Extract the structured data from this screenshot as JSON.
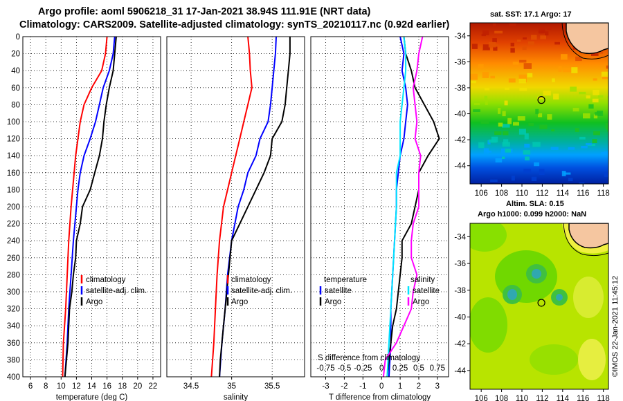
{
  "title_line1": "Argo profile: aoml 5906218_31 17-Jan-2021 38.94S 111.91E (NRT data)",
  "title_line2": "Climatology: CARS2009. Satellite-adjusted climatology: synTS_20210117.nc (0.92d earlier)",
  "colors": {
    "red": "#ff0000",
    "blue": "#0000ff",
    "black": "#000000",
    "cyan": "#00e5ff",
    "magenta": "#ff00ff",
    "land": "#f5c6a0"
  },
  "depth_axis": {
    "min": 0,
    "max": 400,
    "ticks": [
      0,
      20,
      40,
      60,
      80,
      100,
      120,
      140,
      160,
      180,
      200,
      220,
      240,
      260,
      280,
      300,
      320,
      340,
      360,
      380,
      400
    ]
  },
  "chart_data": [
    {
      "type": "line",
      "name": "temperature",
      "xlabel": "temperature (deg C)",
      "xlim": [
        5,
        23
      ],
      "xticks": [
        6,
        8,
        10,
        12,
        14,
        16,
        18,
        20,
        22
      ],
      "ylim": [
        400,
        0
      ],
      "series": [
        {
          "name": "climatology",
          "color": "red",
          "depth": [
            0,
            20,
            40,
            60,
            80,
            100,
            120,
            140,
            160,
            180,
            200,
            240,
            280,
            320,
            360,
            400
          ],
          "value": [
            16.0,
            15.8,
            15.3,
            14.0,
            13.0,
            12.5,
            12.2,
            11.9,
            11.7,
            11.5,
            11.3,
            11.0,
            10.8,
            10.6,
            10.3,
            10.2
          ]
        },
        {
          "name": "satellite-adj. clim.",
          "color": "blue",
          "depth": [
            0,
            20,
            40,
            60,
            80,
            100,
            120,
            140,
            160,
            180,
            200,
            240,
            280,
            320,
            360,
            400
          ],
          "value": [
            17.0,
            16.8,
            16.3,
            15.5,
            15.0,
            14.5,
            13.8,
            13.0,
            12.5,
            12.2,
            12.0,
            11.6,
            11.3,
            11.0,
            10.8,
            10.5
          ]
        },
        {
          "name": "Argo",
          "color": "black",
          "depth": [
            0,
            20,
            40,
            60,
            80,
            100,
            120,
            140,
            160,
            180,
            200,
            220,
            240,
            260,
            280,
            300,
            320,
            340,
            360,
            380,
            400
          ],
          "value": [
            17.2,
            17.0,
            16.8,
            16.3,
            15.9,
            15.6,
            15.4,
            15.0,
            14.4,
            13.8,
            12.8,
            12.5,
            12.0,
            11.9,
            11.6,
            11.4,
            11.1,
            11.0,
            10.9,
            10.7,
            10.5
          ]
        }
      ],
      "legend": [
        "climatology",
        "satellite-adj. clim.",
        "Argo"
      ]
    },
    {
      "type": "line",
      "name": "salinity",
      "xlabel": "salinity",
      "xlim": [
        34.2,
        35.9
      ],
      "xticks": [
        34.5,
        35,
        35.5
      ],
      "xtick_labels": [
        "34.5",
        "35",
        "35.5"
      ],
      "ylim": [
        400,
        0
      ],
      "series": [
        {
          "name": "climatology",
          "color": "red",
          "depth": [
            0,
            20,
            40,
            60,
            80,
            100,
            120,
            140,
            160,
            180,
            200,
            240,
            280,
            320,
            360,
            400
          ],
          "value": [
            35.2,
            35.22,
            35.23,
            35.25,
            35.2,
            35.15,
            35.1,
            35.05,
            35.0,
            34.95,
            34.9,
            34.85,
            34.82,
            34.8,
            34.78,
            34.75
          ]
        },
        {
          "name": "satellite-adj. clim.",
          "color": "blue",
          "depth": [
            0,
            20,
            40,
            60,
            80,
            100,
            120,
            140,
            160,
            180,
            200,
            240,
            280,
            320,
            360,
            400
          ],
          "value": [
            35.55,
            35.54,
            35.52,
            35.5,
            35.48,
            35.45,
            35.35,
            35.3,
            35.2,
            35.15,
            35.08,
            35.0,
            34.95,
            34.92,
            34.88,
            34.85
          ]
        },
        {
          "name": "Argo",
          "color": "black",
          "depth": [
            0,
            20,
            40,
            60,
            80,
            100,
            120,
            140,
            160,
            180,
            200,
            220,
            240,
            260,
            280,
            300,
            320,
            340,
            360,
            380,
            400
          ],
          "value": [
            35.72,
            35.72,
            35.7,
            35.68,
            35.66,
            35.62,
            35.5,
            35.48,
            35.4,
            35.3,
            35.2,
            35.1,
            35.0,
            34.98,
            34.96,
            34.94,
            34.92,
            34.9,
            34.88,
            34.86,
            34.85
          ]
        }
      ],
      "legend": [
        "climatology",
        "satellite-adj. clim.",
        "Argo"
      ]
    },
    {
      "type": "line",
      "name": "difference",
      "xlabel": "T difference from climatology",
      "xlim": [
        -3.8,
        3.6
      ],
      "xticks": [
        -3,
        -2,
        -1,
        0,
        1,
        2,
        3
      ],
      "second_axis_title": "S difference from climatology",
      "second_axis_labels": [
        "-0.75",
        "-0.5",
        "-0.25",
        "0",
        "0.25",
        "0.5",
        "0.75"
      ],
      "ylim": [
        400,
        0
      ],
      "series": [
        {
          "name": "T satellite",
          "color": "blue",
          "depth": [
            0,
            20,
            40,
            60,
            80,
            100,
            120,
            140,
            160,
            180,
            200,
            240,
            280,
            320,
            360,
            400
          ],
          "value": [
            1.0,
            1.2,
            1.1,
            1.3,
            1.4,
            1.3,
            1.2,
            1.0,
            0.9,
            0.8,
            0.8,
            0.7,
            0.6,
            0.5,
            0.5,
            0.4
          ]
        },
        {
          "name": "T Argo",
          "color": "black",
          "depth": [
            0,
            20,
            40,
            60,
            80,
            100,
            120,
            140,
            160,
            180,
            200,
            220,
            240,
            260,
            280,
            300,
            320,
            340,
            360,
            380,
            400
          ],
          "value": [
            1.2,
            1.3,
            1.6,
            1.8,
            2.3,
            2.8,
            3.1,
            2.5,
            2.0,
            2.0,
            1.8,
            1.6,
            1.1,
            1.1,
            1.0,
            0.9,
            0.8,
            0.6,
            0.5,
            0.4,
            0.3
          ]
        },
        {
          "name": "S satellite",
          "color": "cyan",
          "depth": [
            0,
            20,
            40,
            60,
            80,
            100,
            120,
            140,
            160,
            180,
            200,
            240,
            280,
            320,
            360,
            400
          ],
          "value": [
            1.2,
            1.3,
            1.3,
            1.2,
            1.1,
            1.0,
            1.0,
            1.0,
            0.8,
            0.8,
            0.8,
            0.7,
            0.6,
            0.5,
            0.4,
            0.3
          ]
        },
        {
          "name": "S Argo",
          "color": "magenta",
          "depth": [
            0,
            20,
            40,
            60,
            80,
            100,
            120,
            140,
            160,
            180,
            200,
            220,
            240,
            260,
            280,
            300,
            320,
            340,
            360,
            380,
            400
          ],
          "value": [
            2.2,
            2.0,
            1.9,
            1.7,
            1.8,
            1.9,
            1.8,
            2.1,
            2.0,
            2.0,
            2.0,
            1.7,
            1.6,
            1.6,
            1.9,
            1.7,
            1.6,
            1.2,
            0.8,
            0.2,
            0.1
          ]
        }
      ],
      "legend": {
        "temperature_title": "temperature",
        "salinity_title": "salinity",
        "satellite": "satellite",
        "argo": "Argo"
      }
    }
  ],
  "maps": {
    "sst": {
      "title": "sat. SST: 17.1 Argo: 17",
      "yticks": [
        "-34",
        "-36",
        "-38",
        "-40",
        "-42",
        "-44"
      ],
      "xticks": [
        "106",
        "108",
        "110",
        "112",
        "114",
        "116",
        "118"
      ],
      "marker_lon": 111.91,
      "marker_lat": -38.94
    },
    "sla": {
      "title1": "Altim. SLA: 0.15",
      "title2": "Argo h1000: 0.099 h2000: NaN",
      "yticks": [
        "-34",
        "-36",
        "-38",
        "-40",
        "-42",
        "-44"
      ],
      "xticks": [
        "106",
        "108",
        "110",
        "112",
        "114",
        "116",
        "118"
      ],
      "marker_lon": 111.91,
      "marker_lat": -38.94
    }
  },
  "stamp": "©IMOS 22-Jan-2021 11:45:12"
}
